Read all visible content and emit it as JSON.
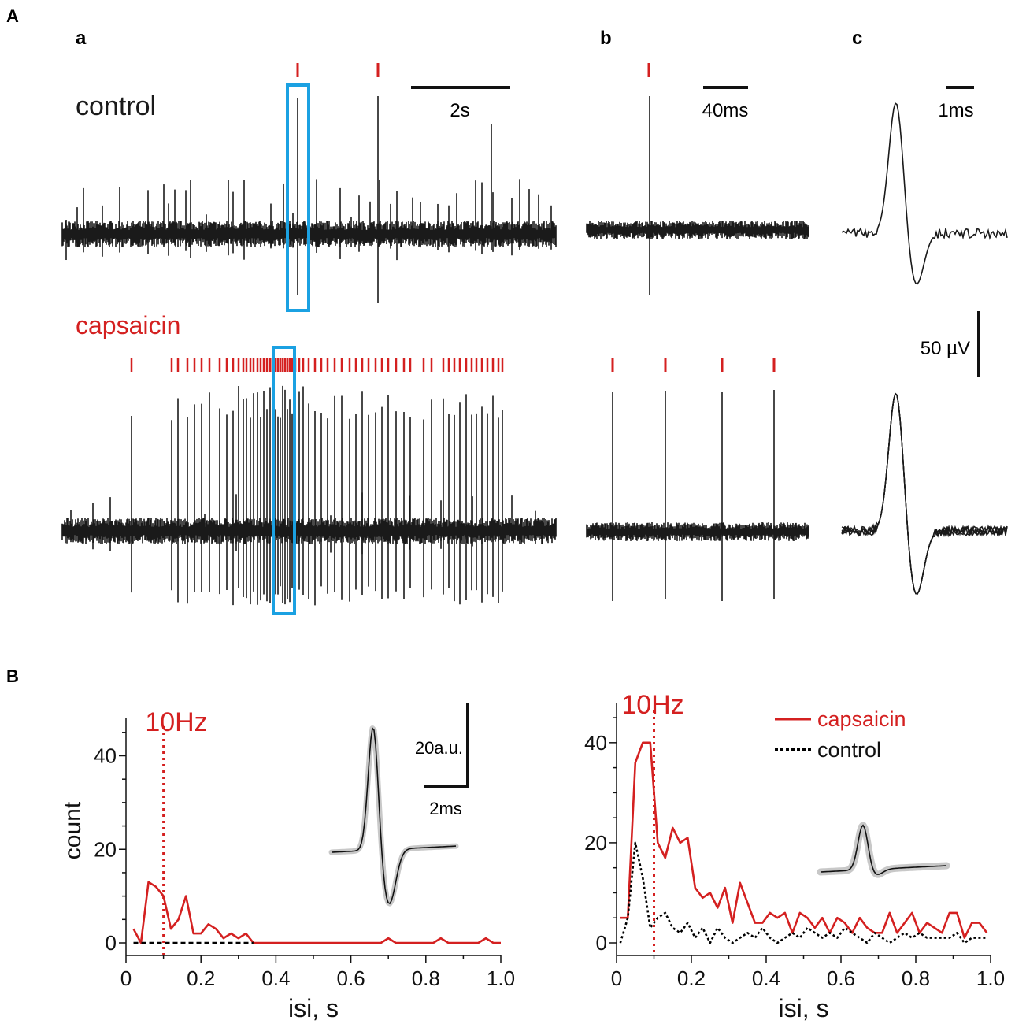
{
  "colors": {
    "trace": "#1a1a1a",
    "spike_mark": "#d42020",
    "highlight_box": "#1ba1e2",
    "sem_band": "#c8c8c8",
    "capsaicin": "#d42020",
    "control": "#000000"
  },
  "panel_A": {
    "label": "A",
    "sublabels": {
      "a": "a",
      "b": "b",
      "c": "c"
    },
    "conditions": {
      "control": "control",
      "capsaicin": "capsaicin"
    },
    "scalebars": {
      "a_time": "2s",
      "b_time": "40ms",
      "c_time": "1ms",
      "voltage": "50 µV"
    }
  },
  "panel_B": {
    "label": "B",
    "threshold_label": "10Hz",
    "left_inset_scale": {
      "amplitude": "20a.u.",
      "time": "2ms"
    },
    "legend": {
      "capsaicin": "capsaicin",
      "control": "control"
    }
  },
  "chart_data": [
    {
      "type": "line",
      "title": "",
      "xlabel": "isi, s",
      "ylabel": "count",
      "xlim": [
        0,
        1.0
      ],
      "ylim": [
        0,
        48
      ],
      "xticks": [
        "0",
        "0.2",
        "0.4",
        "0.6",
        "0.8",
        "1.0"
      ],
      "yticks": [
        "0",
        "20",
        "40"
      ],
      "threshold_x": 0.1,
      "series": [
        {
          "name": "capsaicin",
          "style": "solid",
          "color": "#d42020",
          "x": [
            0.02,
            0.04,
            0.06,
            0.08,
            0.1,
            0.12,
            0.14,
            0.16,
            0.18,
            0.2,
            0.22,
            0.24,
            0.26,
            0.28,
            0.3,
            0.32,
            0.34,
            0.36,
            0.38,
            0.4,
            0.42,
            0.44,
            0.46,
            0.48,
            0.5,
            0.52,
            0.54,
            0.56,
            0.58,
            0.6,
            0.62,
            0.64,
            0.66,
            0.68,
            0.7,
            0.72,
            0.74,
            0.76,
            0.78,
            0.8,
            0.82,
            0.84,
            0.86,
            0.88,
            0.9,
            0.92,
            0.94,
            0.96,
            0.98,
            1.0
          ],
          "values": [
            3,
            0,
            13,
            12,
            10,
            3,
            5,
            10,
            2,
            2,
            4,
            3,
            1,
            2,
            1,
            2,
            0,
            0,
            0,
            0,
            0,
            0,
            0,
            0,
            0,
            0,
            0,
            0,
            0,
            0,
            0,
            0,
            0,
            0,
            1,
            0,
            0,
            0,
            0,
            0,
            0,
            1,
            0,
            0,
            0,
            0,
            0,
            1,
            0,
            0
          ]
        },
        {
          "name": "control",
          "style": "dashed",
          "color": "#000000",
          "x": [
            0.02,
            0.34
          ],
          "values": [
            0,
            0
          ]
        }
      ]
    },
    {
      "type": "line",
      "title": "",
      "xlabel": "isi, s",
      "ylabel": "",
      "xlim": [
        0,
        1.0
      ],
      "ylim": [
        0,
        48
      ],
      "xticks": [
        "0",
        "0.2",
        "0.4",
        "0.6",
        "0.8",
        "1.0"
      ],
      "yticks": [
        "0",
        "20",
        "40"
      ],
      "threshold_x": 0.1,
      "legend": [
        "capsaicin",
        "control"
      ],
      "series": [
        {
          "name": "capsaicin",
          "style": "solid",
          "color": "#d42020",
          "x": [
            0.01,
            0.03,
            0.05,
            0.07,
            0.09,
            0.11,
            0.13,
            0.15,
            0.17,
            0.19,
            0.21,
            0.23,
            0.25,
            0.27,
            0.29,
            0.31,
            0.33,
            0.35,
            0.37,
            0.39,
            0.41,
            0.43,
            0.45,
            0.47,
            0.49,
            0.51,
            0.53,
            0.55,
            0.57,
            0.59,
            0.61,
            0.63,
            0.65,
            0.67,
            0.69,
            0.71,
            0.73,
            0.75,
            0.77,
            0.79,
            0.81,
            0.83,
            0.85,
            0.87,
            0.89,
            0.91,
            0.93,
            0.95,
            0.97,
            0.99
          ],
          "values": [
            5,
            5,
            36,
            40,
            40,
            20,
            17,
            23,
            20,
            21,
            11,
            9,
            10,
            7,
            11,
            4,
            12,
            8,
            4,
            4,
            6,
            5,
            6,
            2,
            6,
            5,
            3,
            5,
            2,
            5,
            4,
            2,
            5,
            3,
            2,
            2,
            6,
            2,
            4,
            6,
            2,
            4,
            3,
            2,
            6,
            6,
            1,
            4,
            4,
            2
          ]
        },
        {
          "name": "control",
          "style": "dotted",
          "color": "#000000",
          "x": [
            0.01,
            0.03,
            0.05,
            0.07,
            0.09,
            0.11,
            0.13,
            0.15,
            0.17,
            0.19,
            0.21,
            0.23,
            0.25,
            0.27,
            0.29,
            0.31,
            0.33,
            0.35,
            0.37,
            0.39,
            0.41,
            0.43,
            0.45,
            0.47,
            0.49,
            0.51,
            0.53,
            0.55,
            0.57,
            0.59,
            0.61,
            0.63,
            0.65,
            0.67,
            0.69,
            0.71,
            0.73,
            0.75,
            0.77,
            0.79,
            0.81,
            0.83,
            0.85,
            0.87,
            0.89,
            0.91,
            0.93,
            0.95,
            0.97,
            0.99
          ],
          "values": [
            0,
            5,
            20,
            13,
            3,
            5,
            6,
            3,
            2,
            4,
            1,
            3,
            0,
            3,
            1,
            0,
            1,
            2,
            1,
            3,
            1,
            0,
            1,
            2,
            1,
            3,
            2,
            1,
            2,
            1,
            3,
            2,
            1,
            0,
            2,
            1,
            0,
            1,
            2,
            1,
            2,
            1,
            1,
            1,
            1,
            2,
            0,
            1,
            1,
            1
          ]
        }
      ]
    }
  ]
}
